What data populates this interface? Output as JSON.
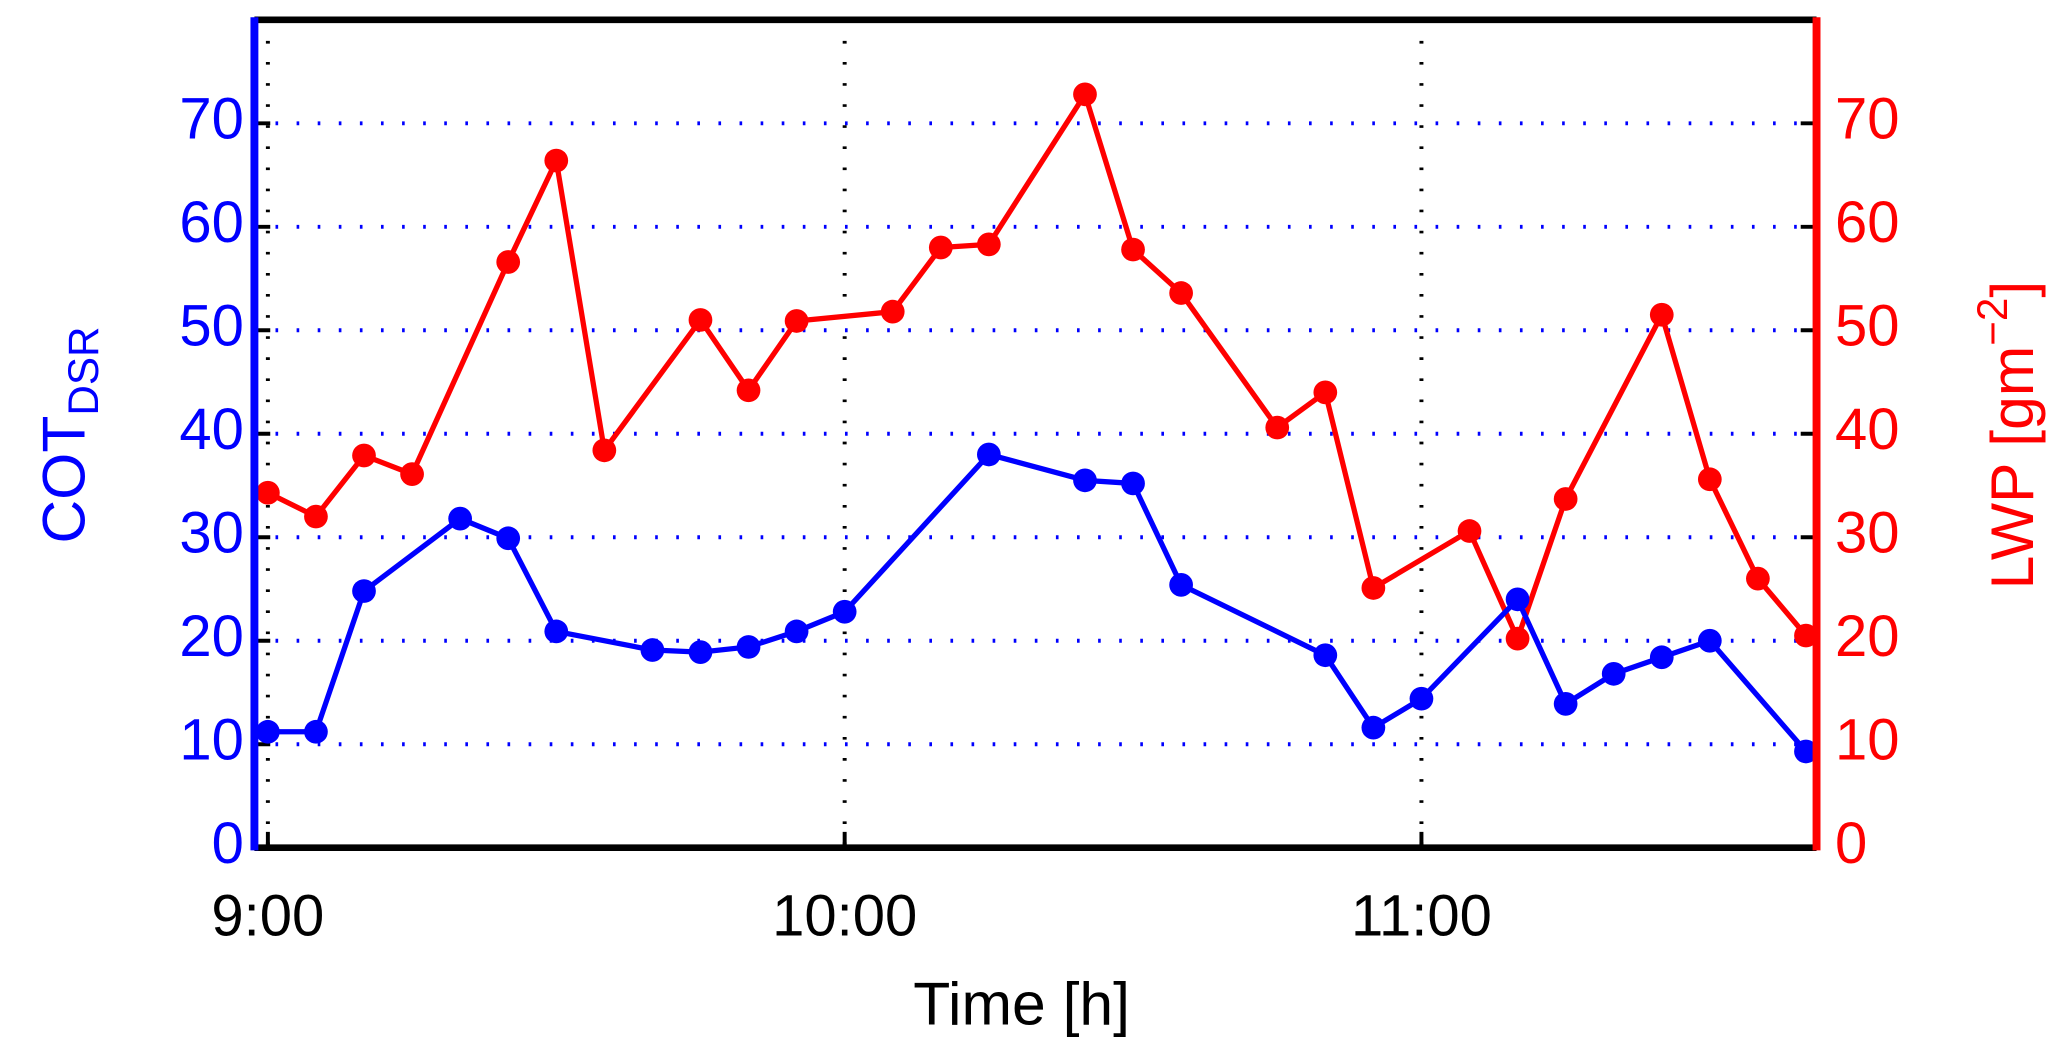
{
  "chart_data": {
    "type": "line",
    "xlabel": "Time [h]",
    "ylabel": {
      "text": "COT",
      "sub": "DSR"
    },
    "y2label": {
      "text": "LWP [gm",
      "sup": "−2",
      "end": "]"
    },
    "xlim": [
      538.6,
      701.1
    ],
    "xticks": [
      {
        "value": 540,
        "label": "9:00"
      },
      {
        "value": 600,
        "label": "10:00"
      },
      {
        "value": 660,
        "label": "11:00"
      }
    ],
    "ylim": [
      0,
      80
    ],
    "yticks": [
      0,
      10,
      20,
      30,
      40,
      50,
      60,
      70
    ],
    "y2lim": [
      0,
      80
    ],
    "y2ticks": [
      0,
      10,
      20,
      30,
      40,
      50,
      60,
      70
    ],
    "grid": true,
    "series": [
      {
        "name": "COT",
        "color": "#0000ff",
        "x": [
          540,
          545,
          550,
          560,
          565,
          570,
          580,
          585,
          590,
          595,
          600,
          615,
          625,
          630,
          635,
          650,
          655,
          660,
          670,
          675,
          680,
          685,
          690,
          700
        ],
        "values": [
          11.2,
          11.2,
          24.8,
          31.8,
          29.9,
          20.9,
          19.1,
          18.9,
          19.4,
          20.9,
          22.8,
          38.0,
          35.5,
          35.2,
          25.4,
          18.6,
          11.6,
          14.4,
          24.0,
          13.9,
          16.8,
          18.4,
          20.0,
          9.3
        ]
      },
      {
        "name": "LWP",
        "color": "#ff0000",
        "axis": "y2",
        "x": [
          540,
          545,
          550,
          555,
          565,
          570,
          575,
          585,
          590,
          595,
          605,
          610,
          615,
          625,
          630,
          635,
          645,
          650,
          655,
          665,
          670,
          675,
          685,
          690,
          695,
          700
        ],
        "values": [
          34.3,
          32.0,
          37.9,
          36.1,
          56.6,
          66.4,
          38.4,
          51.0,
          44.2,
          50.9,
          51.8,
          58.0,
          58.3,
          72.8,
          57.8,
          53.6,
          40.6,
          44.0,
          25.1,
          30.6,
          20.2,
          33.7,
          51.5,
          35.6,
          26.0,
          20.5
        ]
      }
    ]
  }
}
